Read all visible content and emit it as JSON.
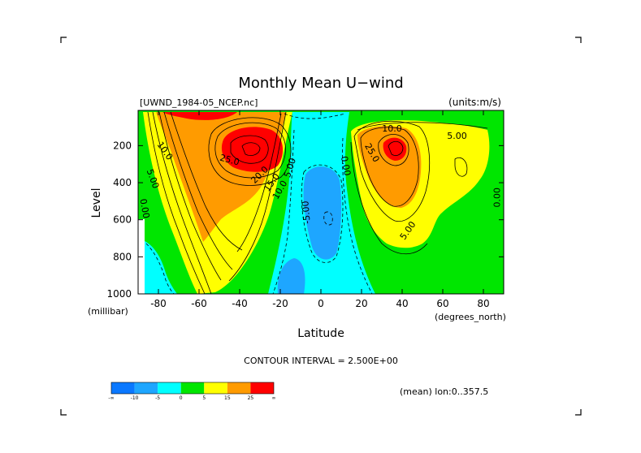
{
  "chart_data": {
    "type": "heatmap",
    "title": "Monthly Mean U−wind",
    "subtitle_left": "[UWND_1984-05_NCEP.nc]",
    "units": "(units:m/s)",
    "xlabel": "Latitude",
    "x_units": "(degrees_north)",
    "ylabel": "Level",
    "y_units": "(millibar)",
    "xlim": [
      -90,
      90
    ],
    "ylim": [
      1000,
      10
    ],
    "y_inverted": true,
    "x_ticks": [
      -80,
      -60,
      -40,
      -20,
      0,
      20,
      40,
      60,
      80
    ],
    "y_ticks": [
      200,
      400,
      600,
      800,
      1000
    ],
    "contour_interval_text": "CONTOUR INTERVAL = 2.500E+00",
    "footnote": "(mean) lon:0..357.5",
    "contour_labels": [
      {
        "text": "10.0",
        "lat": -77,
        "level": 230,
        "angle": 55
      },
      {
        "text": "5.00",
        "lat": -83,
        "level": 380,
        "angle": 70
      },
      {
        "text": "0.00",
        "lat": -87,
        "level": 540,
        "angle": 80
      },
      {
        "text": "25.0",
        "lat": -45,
        "level": 280,
        "angle": 15
      },
      {
        "text": "20.0",
        "lat": -30,
        "level": 360,
        "angle": -45
      },
      {
        "text": "15.0",
        "lat": -24,
        "level": 400,
        "angle": -55
      },
      {
        "text": "10.0",
        "lat": -20,
        "level": 440,
        "angle": -60
      },
      {
        "text": "5.00",
        "lat": -15,
        "level": 320,
        "angle": -72
      },
      {
        "text": "-5.00",
        "lat": -7,
        "level": 560,
        "angle": -95
      },
      {
        "text": "0.00",
        "lat": 12,
        "level": 310,
        "angle": 80
      },
      {
        "text": "10.0",
        "lat": 35,
        "level": 110,
        "angle": 0
      },
      {
        "text": "5.00",
        "lat": 67,
        "level": 150,
        "angle": 0
      },
      {
        "text": "25.0",
        "lat": 25,
        "level": 240,
        "angle": 60
      },
      {
        "text": "5.00",
        "lat": 43,
        "level": 660,
        "angle": -55
      },
      {
        "text": "0.00",
        "lat": 87,
        "level": 480,
        "angle": -90
      }
    ],
    "colorbar": {
      "tick_labels": [
        "-∞",
        "-10",
        "-5",
        "0",
        "5",
        "15",
        "25",
        "∞"
      ],
      "colors": [
        "#0a78ff",
        "#1ea6ff",
        "#00ffff",
        "#00e600",
        "#ffff00",
        "#ff9b00",
        "#ff0000"
      ]
    },
    "features": [
      {
        "name": "southern-jet",
        "lat": -30,
        "level": 200,
        "max": 30
      },
      {
        "name": "northern-jet",
        "lat": 38,
        "level": 200,
        "max": 30
      },
      {
        "name": "equatorial-easterlies",
        "lat": 0,
        "level": 500,
        "min": -10
      }
    ]
  }
}
